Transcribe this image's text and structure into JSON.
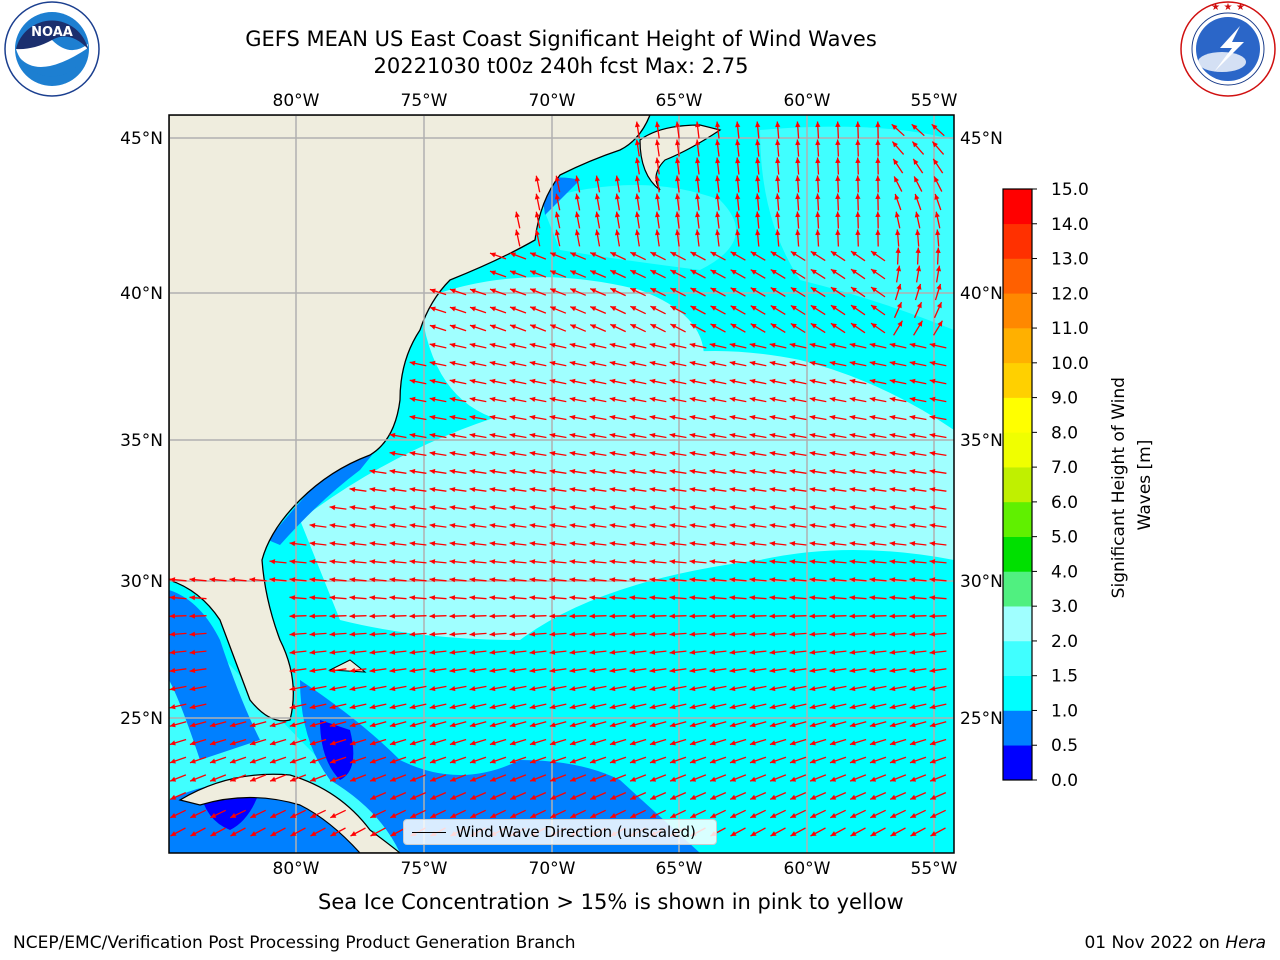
{
  "header": {
    "title_line1": "GEFS MEAN US East Coast Significant Height of Wind Waves",
    "title_line2": "20221030 t00z 240h fcst   Max: 2.75"
  },
  "logos": {
    "noara_icon": "noaa-logo",
    "nws_icon": "nws-logo",
    "noaa_text": "NOAA",
    "noaa_ring_text": "NATIONAL OCEANIC AND ATMOSPHERIC ADMINISTRATION · U.S. DEPARTMENT OF COMMERCE",
    "nws_ring_text": "NATIONAL WEATHER SERVICE"
  },
  "map": {
    "lon_labels": [
      "80°W",
      "75°W",
      "70°W",
      "65°W",
      "60°W",
      "55°W"
    ],
    "lat_labels": [
      "45°N",
      "40°N",
      "35°N",
      "30°N",
      "25°N"
    ],
    "land_color": "#efedde",
    "ocean_color": "#00ffff",
    "arrow_color": "#ff0000",
    "legend_label": "Wind Wave Direction (unscaled)"
  },
  "colorbar": {
    "ticks": [
      "0.0",
      "0.5",
      "1.0",
      "1.5",
      "2.0",
      "3.0",
      "4.0",
      "5.0",
      "6.0",
      "7.0",
      "8.0",
      "9.0",
      "10.0",
      "11.0",
      "12.0",
      "13.0",
      "14.0",
      "15.0"
    ],
    "colors": [
      "#0000ff",
      "#0080ff",
      "#00ffff",
      "#40ffff",
      "#a0ffff",
      "#50f080",
      "#00e000",
      "#60f000",
      "#c0f000",
      "#f0ff00",
      "#ffff00",
      "#ffd000",
      "#ffb000",
      "#ff8800",
      "#ff6000",
      "#ff3000",
      "#ff0000"
    ],
    "label": "Significant Height of Wind Waves [m]"
  },
  "footer": {
    "ice_note": "Sea Ice Concentration > 15% is shown in pink to yellow",
    "left": "NCEP/EMC/Verification Post Processing Product Generation Branch",
    "date": "01 Nov 2022 on ",
    "host": "Hera"
  }
}
